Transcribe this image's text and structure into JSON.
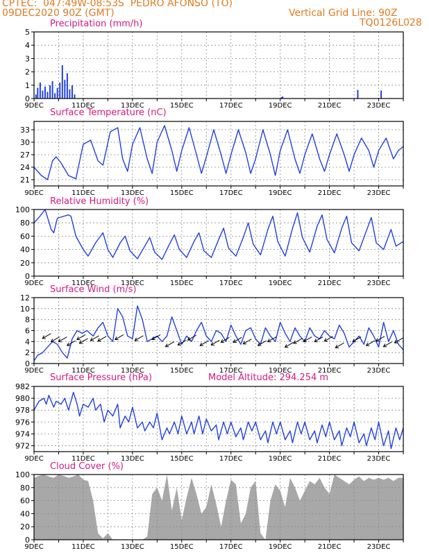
{
  "header": {
    "line1": "CPTEC:  047:49W-08:53S  PEDRO AFONSO (TO)",
    "line2": "09DEC2020 90Z (GMT)",
    "grid_note": "Vertical Grid Line: 90Z",
    "code": "TQ0126L028"
  },
  "colors": {
    "header": "#e07a1f",
    "title": "#d6197f",
    "series": "#2040e0",
    "cloud": "#a8a8a8",
    "grid": "#888888"
  },
  "x_labels": [
    "9DEC",
    "11DEC",
    "13DEC",
    "15DEC",
    "17DEC",
    "19DEC",
    "21DEC",
    "23DEC"
  ],
  "panel_titles": {
    "precip": "Precipitation (mm/h)",
    "temp": "Surface Temperature (nC)",
    "rh": "Relative Humidity (%)",
    "wind": "Surface Wind (m/s)",
    "pres": "Surface Pressure (hPa)",
    "pres_note": "Model Altitude: 294.254 m",
    "cloud": "Cloud Cover (%)"
  },
  "chart_data": [
    {
      "id": "precip",
      "type": "bar",
      "title": "Precipitation (mm/h)",
      "xlabel": "",
      "ylabel": "",
      "ylim": [
        0,
        5
      ],
      "yticks": [
        0,
        1,
        2,
        3,
        4,
        5
      ],
      "xlim_days": [
        0,
        15
      ],
      "bars": [
        [
          0.08,
          0.3
        ],
        [
          0.15,
          0.8
        ],
        [
          0.25,
          1.2
        ],
        [
          0.35,
          0.6
        ],
        [
          0.45,
          0.9
        ],
        [
          0.55,
          0.5
        ],
        [
          0.65,
          1.0
        ],
        [
          0.75,
          1.3
        ],
        [
          0.85,
          0.4
        ],
        [
          0.95,
          0.8
        ],
        [
          1.05,
          1.2
        ],
        [
          1.15,
          2.5
        ],
        [
          1.25,
          1.4
        ],
        [
          1.35,
          1.9
        ],
        [
          1.45,
          0.7
        ],
        [
          1.55,
          1.0
        ],
        [
          1.65,
          0.3
        ],
        [
          10.05,
          0.1
        ],
        [
          10.1,
          0.15
        ],
        [
          13.15,
          0.65
        ],
        [
          14.1,
          0.6
        ]
      ]
    },
    {
      "id": "temp",
      "type": "line",
      "title": "Surface Temperature (nC)",
      "xlabel": "",
      "ylabel": "",
      "ylim": [
        19.5,
        35
      ],
      "yticks": [
        21,
        24,
        27,
        30,
        33
      ],
      "xlim_days": [
        0,
        15
      ],
      "x": [
        0,
        0.3,
        0.55,
        0.75,
        0.9,
        1.1,
        1.4,
        1.7,
        2.0,
        2.3,
        2.6,
        2.8,
        3.1,
        3.4,
        3.6,
        3.8,
        4.0,
        4.3,
        4.6,
        4.8,
        5.0,
        5.3,
        5.6,
        5.8,
        6.0,
        6.3,
        6.6,
        6.8,
        7.0,
        7.3,
        7.6,
        7.8,
        8.0,
        8.3,
        8.6,
        8.8,
        9.0,
        9.3,
        9.6,
        9.8,
        10.0,
        10.3,
        10.6,
        10.8,
        11.0,
        11.3,
        11.6,
        11.8,
        12.0,
        12.3,
        12.6,
        12.8,
        13.0,
        13.3,
        13.6,
        13.8,
        14.0,
        14.3,
        14.6,
        14.8,
        15.0
      ],
      "values": [
        24,
        22,
        21,
        25.5,
        26.5,
        25,
        22,
        21.2,
        29.5,
        30.5,
        25.5,
        24.5,
        32.5,
        33.5,
        26,
        23,
        29.5,
        33.5,
        26,
        22.5,
        30,
        34,
        28,
        23,
        28,
        33.5,
        27,
        22.5,
        26.5,
        33,
        27,
        22.5,
        27,
        33,
        27.5,
        22.5,
        26,
        33,
        27,
        22,
        28,
        33,
        26,
        22.5,
        27,
        32,
        26,
        23,
        27,
        32,
        27,
        23,
        27,
        31,
        28,
        24,
        28,
        31,
        26,
        28,
        29
      ]
    },
    {
      "id": "rh",
      "type": "line",
      "title": "Relative Humidity (%)",
      "xlabel": "",
      "ylabel": "",
      "ylim": [
        0,
        100
      ],
      "yticks": [
        0,
        20,
        40,
        60,
        80,
        100
      ],
      "xlim_days": [
        0,
        15
      ],
      "x": [
        0,
        0.2,
        0.45,
        0.7,
        0.8,
        0.95,
        1.4,
        1.5,
        1.7,
        2.0,
        2.2,
        2.5,
        2.8,
        3.0,
        3.2,
        3.5,
        3.7,
        3.9,
        4.2,
        4.5,
        4.7,
        4.9,
        5.2,
        5.5,
        5.7,
        5.9,
        6.2,
        6.5,
        6.7,
        6.9,
        7.2,
        7.5,
        7.7,
        7.9,
        8.2,
        8.5,
        8.7,
        8.9,
        9.2,
        9.5,
        9.7,
        9.9,
        10.2,
        10.5,
        10.7,
        10.9,
        11.2,
        11.5,
        11.7,
        11.9,
        12.2,
        12.5,
        12.7,
        12.9,
        13.2,
        13.5,
        13.7,
        13.9,
        14.2,
        14.5,
        14.7,
        15.0
      ],
      "values": [
        80,
        88,
        100,
        70,
        65,
        87,
        92,
        90,
        60,
        40,
        30,
        50,
        65,
        40,
        28,
        50,
        60,
        38,
        26,
        45,
        58,
        36,
        25,
        48,
        62,
        40,
        28,
        52,
        65,
        38,
        28,
        55,
        72,
        42,
        30,
        58,
        80,
        48,
        32,
        70,
        90,
        52,
        30,
        72,
        95,
        58,
        36,
        75,
        92,
        55,
        35,
        72,
        90,
        50,
        38,
        68,
        88,
        50,
        40,
        70,
        45,
        52
      ]
    },
    {
      "id": "wind",
      "type": "line",
      "title": "Surface Wind (m/s)",
      "xlabel": "",
      "ylabel": "",
      "ylim": [
        0,
        12
      ],
      "yticks": [
        0,
        2,
        4,
        6,
        8,
        10,
        12
      ],
      "xlim_days": [
        0,
        15
      ],
      "x": [
        0,
        0.15,
        0.35,
        0.55,
        0.75,
        0.95,
        1.15,
        1.35,
        1.55,
        1.75,
        1.95,
        2.15,
        2.4,
        2.6,
        2.8,
        3.0,
        3.2,
        3.4,
        3.6,
        3.8,
        4.0,
        4.2,
        4.4,
        4.6,
        4.8,
        5.0,
        5.2,
        5.4,
        5.6,
        5.8,
        6.0,
        6.2,
        6.4,
        6.6,
        6.8,
        7.0,
        7.2,
        7.4,
        7.6,
        7.8,
        8.0,
        8.2,
        8.4,
        8.6,
        8.8,
        9.0,
        9.2,
        9.4,
        9.6,
        9.8,
        10.0,
        10.2,
        10.4,
        10.6,
        10.8,
        11.0,
        11.2,
        11.4,
        11.6,
        11.8,
        12.0,
        12.2,
        12.4,
        12.6,
        12.8,
        13.0,
        13.2,
        13.4,
        13.6,
        13.8,
        14.0,
        14.2,
        14.4,
        14.6,
        14.8,
        15.0
      ],
      "values": [
        0.5,
        1.5,
        2.0,
        3.0,
        4.0,
        3.5,
        2.0,
        1.0,
        4.5,
        6.0,
        5.5,
        6.0,
        5.0,
        6.5,
        7.5,
        5.0,
        4.0,
        10.0,
        8.5,
        5.0,
        4.5,
        10.5,
        8.0,
        4.0,
        4.5,
        5.0,
        4.0,
        5.0,
        8.5,
        6.0,
        3.5,
        5.0,
        4.0,
        6.0,
        7.5,
        5.0,
        4.0,
        6.0,
        5.5,
        4.0,
        7.0,
        5.0,
        3.5,
        6.0,
        6.5,
        4.5,
        3.5,
        6.5,
        5.0,
        4.0,
        7.5,
        5.5,
        4.0,
        6.5,
        5.0,
        4.0,
        6.5,
        5.0,
        4.5,
        6.0,
        5.0,
        4.5,
        7.0,
        5.5,
        3.0,
        4.0,
        5.0,
        3.5,
        6.5,
        5.0,
        3.0,
        7.5,
        4.0,
        6.0,
        3.5,
        2.5
      ],
      "arrows": [
        [
          0.55,
          5.1,
          4
        ],
        [
          0.9,
          4.5,
          2
        ],
        [
          1.2,
          4.5,
          2
        ],
        [
          1.55,
          3.8,
          2
        ],
        [
          1.95,
          4.9,
          4
        ],
        [
          2.05,
          4.2,
          4
        ],
        [
          2.5,
          4.7,
          5
        ],
        [
          2.8,
          4.6,
          5
        ],
        [
          3.5,
          4.9,
          5
        ],
        [
          4.3,
          4.7,
          5
        ],
        [
          5.0,
          4.9,
          5
        ],
        [
          5.55,
          3.6,
          3
        ],
        [
          6.05,
          3.9,
          3
        ],
        [
          6.45,
          4.8,
          4
        ],
        [
          6.95,
          3.8,
          4
        ],
        [
          7.4,
          3.9,
          4
        ],
        [
          7.8,
          4.4,
          4
        ],
        [
          8.3,
          4.4,
          4
        ],
        [
          8.7,
          4.1,
          4
        ],
        [
          9.3,
          3.8,
          3
        ],
        [
          9.7,
          4.5,
          4
        ],
        [
          10.4,
          3.5,
          4
        ],
        [
          10.75,
          4.2,
          4
        ],
        [
          11.15,
          4.5,
          4
        ],
        [
          11.6,
          4.5,
          4
        ],
        [
          12.0,
          4.6,
          4
        ],
        [
          12.45,
          3.4,
          3
        ],
        [
          13.15,
          4.5,
          4
        ],
        [
          13.7,
          3.8,
          4
        ],
        [
          14.1,
          4.6,
          4
        ],
        [
          14.4,
          3.6,
          3
        ],
        [
          14.85,
          4.3,
          3
        ]
      ]
    },
    {
      "id": "pres",
      "type": "line",
      "title": "Surface Pressure (hPa)",
      "xlabel": "",
      "ylabel": "",
      "ylim": [
        971,
        982
      ],
      "yticks": [
        972,
        974,
        976,
        978,
        980,
        982
      ],
      "xlim_days": [
        0,
        15
      ],
      "x": [
        0,
        0.2,
        0.4,
        0.5,
        0.6,
        0.8,
        0.9,
        1.1,
        1.25,
        1.4,
        1.6,
        1.75,
        1.85,
        2.0,
        2.2,
        2.4,
        2.5,
        2.7,
        2.85,
        3.0,
        3.2,
        3.4,
        3.5,
        3.7,
        3.85,
        4.0,
        4.2,
        4.4,
        4.5,
        4.7,
        4.85,
        5.0,
        5.2,
        5.4,
        5.5,
        5.7,
        5.85,
        6.0,
        6.2,
        6.4,
        6.5,
        6.7,
        6.85,
        7.0,
        7.2,
        7.4,
        7.5,
        7.7,
        7.85,
        8.0,
        8.2,
        8.4,
        8.5,
        8.7,
        8.85,
        9.0,
        9.2,
        9.4,
        9.5,
        9.7,
        9.85,
        10.0,
        10.2,
        10.4,
        10.5,
        10.7,
        10.85,
        11.0,
        11.2,
        11.4,
        11.5,
        11.7,
        11.85,
        12.0,
        12.2,
        12.4,
        12.5,
        12.7,
        12.85,
        13.0,
        13.2,
        13.4,
        13.5,
        13.7,
        13.85,
        14.0,
        14.2,
        14.4,
        14.5,
        14.7,
        14.85,
        15.0
      ],
      "values": [
        978,
        979.5,
        980,
        979,
        980.5,
        978.5,
        979.5,
        979,
        980,
        978,
        981,
        979,
        977,
        979,
        978.5,
        980,
        978,
        979,
        976,
        978,
        977,
        979,
        975,
        977,
        976,
        978.5,
        975,
        976,
        974.5,
        976,
        975,
        977.5,
        973,
        975,
        974,
        976,
        974,
        977,
        974,
        976,
        974,
        977,
        974,
        976.5,
        974.5,
        975.5,
        973,
        976,
        974,
        976,
        973.5,
        975,
        973,
        976,
        974.5,
        976,
        973,
        974.5,
        972.5,
        976,
        974,
        976,
        973,
        974.5,
        972.5,
        976,
        974,
        976,
        973,
        974.5,
        972.5,
        975.5,
        973.5,
        976,
        973,
        974.5,
        972,
        975,
        973.5,
        976,
        972.5,
        974,
        972,
        975,
        973,
        976,
        972,
        974.5,
        971.5,
        975,
        973,
        975
      ]
    },
    {
      "id": "cloud",
      "type": "area",
      "title": "Cloud Cover (%)",
      "xlabel": "",
      "ylabel": "",
      "ylim": [
        0,
        100
      ],
      "yticks": [
        0,
        20,
        40,
        60,
        80,
        100
      ],
      "xlim_days": [
        0,
        15
      ],
      "x": [
        0,
        0.2,
        0.4,
        0.6,
        0.8,
        1.0,
        1.2,
        1.4,
        1.6,
        1.8,
        2.0,
        2.2,
        2.4,
        2.6,
        2.8,
        3.0,
        3.2,
        3.4,
        3.6,
        3.8,
        4.0,
        4.2,
        4.4,
        4.6,
        4.8,
        5.0,
        5.2,
        5.4,
        5.6,
        5.8,
        6.0,
        6.2,
        6.4,
        6.6,
        6.8,
        7.0,
        7.2,
        7.4,
        7.6,
        7.8,
        8.0,
        8.2,
        8.4,
        8.6,
        8.8,
        9.0,
        9.2,
        9.4,
        9.6,
        9.8,
        10.0,
        10.2,
        10.4,
        10.6,
        10.8,
        11.0,
        11.2,
        11.4,
        11.6,
        11.8,
        12.0,
        12.2,
        12.4,
        12.6,
        12.8,
        13.0,
        13.2,
        13.4,
        13.6,
        13.8,
        14.0,
        14.2,
        14.4,
        14.6,
        14.8,
        15.0
      ],
      "values": [
        95,
        98,
        100,
        97,
        95,
        100,
        98,
        95,
        97,
        100,
        92,
        90,
        60,
        10,
        2,
        10,
        0,
        0,
        0,
        0,
        0,
        0,
        0,
        5,
        70,
        80,
        60,
        100,
        45,
        80,
        30,
        65,
        95,
        70,
        40,
        50,
        85,
        55,
        20,
        60,
        92,
        85,
        25,
        40,
        80,
        90,
        10,
        0,
        60,
        85,
        75,
        50,
        95,
        80,
        60,
        75,
        90,
        85,
        95,
        80,
        70,
        100,
        95,
        90,
        85,
        92,
        97,
        90,
        95,
        92,
        95,
        92,
        95,
        90,
        95,
        95
      ]
    }
  ]
}
